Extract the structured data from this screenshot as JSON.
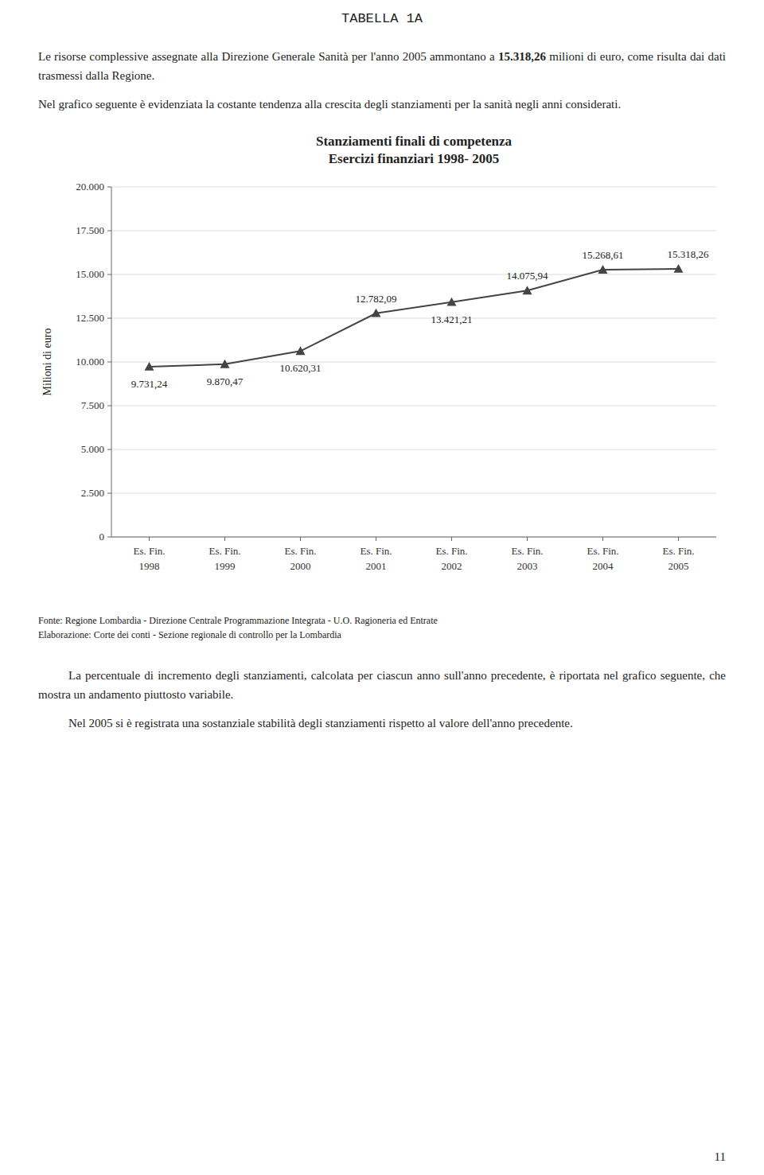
{
  "page_title": "TABELLA 1A",
  "text_before_chart": [
    [
      "Le risorse complessive assegnate alla Direzione Generale Sanità per l'anno 2005 ammontano a ",
      "15.318,26",
      " milioni di euro, come risulta dai dati trasmessi dalla Regione."
    ],
    [
      "Nel grafico seguente è evidenziata la costante tendenza alla crescita degli stanziamenti per la sanità negli anni considerati."
    ]
  ],
  "chart_data": {
    "type": "line",
    "title": "Stanziamenti finali di competenza",
    "subtitle": "Esercizi finanziari 1998- 2005",
    "y_label": "Milioni di euro",
    "categories": [
      "Es. Fin.\n1998",
      "Es. Fin.\n1999",
      "Es. Fin.\n2000",
      "Es. Fin.\n2001",
      "Es. Fin.\n2002",
      "Es. Fin.\n2003",
      "Es. Fin.\n2004",
      "Es. Fin.\n2005"
    ],
    "values": [
      9731.24,
      9870.47,
      10620.31,
      12782.09,
      13421.21,
      14075.94,
      15268.61,
      15318.26
    ],
    "value_labels": [
      "9.731,24",
      "9.870,47",
      "10.620,31",
      "12.782,09",
      "13.421,21",
      "14.075,94",
      "15.268,61",
      "15.318,26"
    ],
    "data_labels": true,
    "color": "#444444",
    "marker": "triangle",
    "ylim": [
      0,
      20000
    ],
    "yticks": [
      0,
      {
        "value": 2500,
        "label": "2.500"
      },
      {
        "value": 5000,
        "label": "5.000"
      },
      {
        "value": 7500,
        "label": "7.500"
      },
      {
        "value": 10000,
        "label": "10.000"
      },
      {
        "value": 12500,
        "label": "12.500"
      },
      {
        "value": 15000,
        "label": "15.000"
      },
      {
        "value": 17500,
        "label": "17.500"
      },
      {
        "value": 20000,
        "label": "20.000"
      }
    ],
    "grid": true
  },
  "sources": [
    "Fonte: Regione Lombardia - Direzione Centrale Programmazione Integrata - U.O. Ragioneria ed Entrate",
    "Elaborazione: Corte dei conti - Sezione regionale di controllo per la Lombardia"
  ],
  "text_after_chart": [
    [
      "La percentuale di incremento degli stanziamenti, calcolata per ciascun anno sull'anno precedente, è riportata nel grafico seguente, che mostra un andamento piuttosto variabile."
    ],
    [
      "Nel 2005 si è registrata una sostanziale stabilità degli stanziamenti rispetto al valore dell'anno precedente."
    ]
  ],
  "page_number": "11"
}
